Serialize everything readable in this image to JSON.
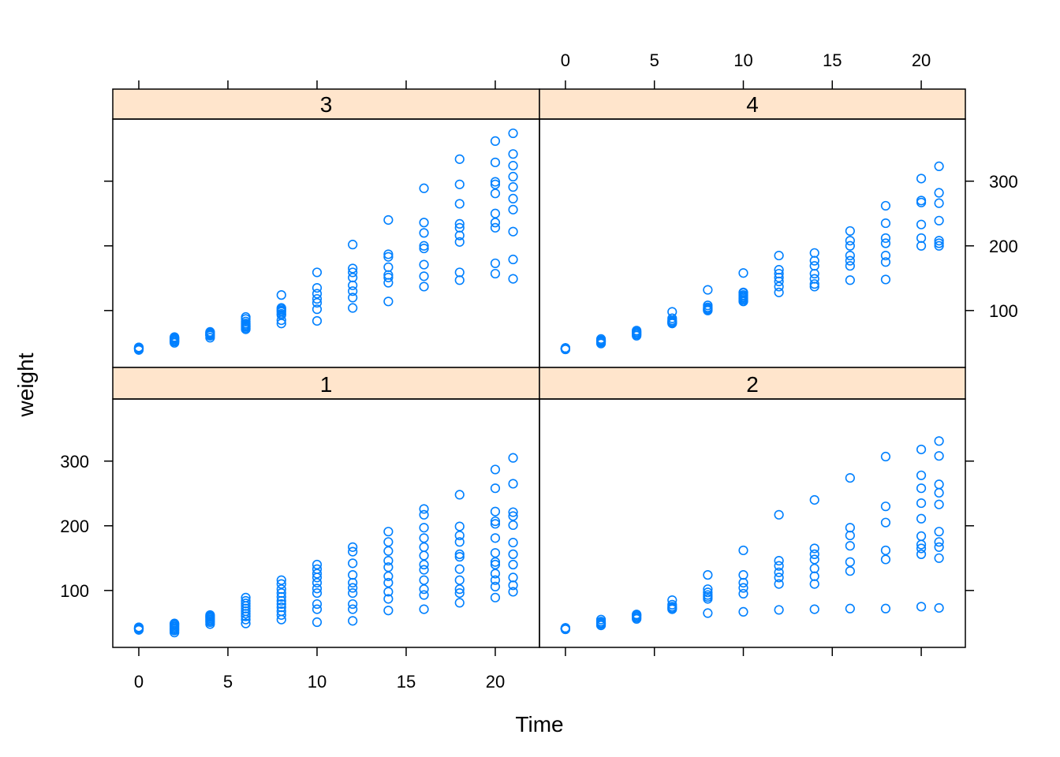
{
  "chart_data": {
    "type": "scatter",
    "layout": "2x2 trellis (xyplot weight ~ Time | Diet)",
    "xlabel": "Time",
    "ylabel": "weight",
    "xlim": [
      -1.46,
      22.48
    ],
    "ylim": [
      12,
      396
    ],
    "x_ticks": [
      0,
      5,
      10,
      15,
      20
    ],
    "y_ticks": [
      100,
      200,
      300
    ],
    "colors": {
      "point": "#0080FF",
      "strip": "#FFE5CC",
      "axis": "#000000"
    },
    "panels": [
      {
        "label": "3",
        "row": "top",
        "col": "left",
        "points": {
          "0": [
            39,
            40,
            41,
            41,
            42,
            42,
            43,
            43,
            42,
            41
          ],
          "2": [
            50,
            52,
            53,
            53,
            55,
            56,
            57,
            58,
            59
          ],
          "4": [
            58,
            61,
            62,
            62,
            63,
            64,
            65,
            66,
            67
          ],
          "6": [
            71,
            73,
            75,
            76,
            78,
            80,
            83,
            87,
            90
          ],
          "8": [
            80,
            85,
            93,
            95,
            98,
            100,
            102,
            104,
            124
          ],
          "10": [
            84,
            102,
            112,
            118,
            126,
            135,
            159
          ],
          "12": [
            104,
            120,
            130,
            139,
            151,
            159,
            165,
            202
          ],
          "14": [
            114,
            143,
            151,
            155,
            167,
            183,
            187,
            240
          ],
          "16": [
            137,
            153,
            171,
            196,
            200,
            220,
            236,
            289
          ],
          "18": [
            147,
            159,
            206,
            216,
            228,
            234,
            265,
            295,
            334
          ],
          "20": [
            157,
            173,
            228,
            236,
            250,
            281,
            295,
            299,
            329,
            362
          ],
          "21": [
            149,
            179,
            222,
            256,
            273,
            291,
            307,
            324,
            342,
            374
          ]
        }
      },
      {
        "label": "4",
        "row": "top",
        "col": "right",
        "points": {
          "0": [
            40,
            41,
            41,
            42,
            42,
            42,
            41,
            40,
            42,
            41
          ],
          "2": [
            49,
            51,
            52,
            53,
            54,
            56
          ],
          "4": [
            61,
            63,
            64,
            66,
            67,
            69
          ],
          "6": [
            80,
            81,
            82,
            83,
            85,
            88,
            98
          ],
          "8": [
            100,
            101,
            102,
            103,
            105,
            108,
            132
          ],
          "10": [
            114,
            116,
            118,
            120,
            122,
            124,
            127,
            128,
            158
          ],
          "12": [
            128,
            137,
            145,
            151,
            157,
            163,
            185
          ],
          "14": [
            137,
            141,
            149,
            157,
            169,
            177,
            189
          ],
          "16": [
            147,
            169,
            177,
            185,
            200,
            208,
            223
          ],
          "18": [
            148,
            175,
            185,
            204,
            212,
            235,
            262
          ],
          "20": [
            200,
            212,
            233,
            267,
            270,
            304
          ],
          "21": [
            200,
            204,
            208,
            239,
            266,
            282,
            323
          ]
        }
      },
      {
        "label": "1",
        "row": "bottom",
        "col": "left",
        "points": {
          "0": [
            39,
            40,
            41,
            41,
            42,
            43,
            43,
            41,
            42,
            41
          ],
          "2": [
            35,
            38,
            40,
            42,
            44,
            46,
            48,
            49
          ],
          "4": [
            48,
            51,
            53,
            55,
            57,
            59,
            60,
            62
          ],
          "6": [
            49,
            55,
            60,
            64,
            68,
            72,
            76,
            80,
            84,
            89
          ],
          "8": [
            55,
            62,
            68,
            74,
            79,
            84,
            90,
            96,
            102,
            110,
            116
          ],
          "10": [
            51,
            71,
            79,
            96,
            103,
            112,
            120,
            126,
            133,
            140
          ],
          "12": [
            53,
            71,
            79,
            96,
            104,
            112,
            124,
            142,
            160,
            167
          ],
          "14": [
            69,
            87,
            98,
            112,
            122,
            136,
            146,
            161,
            175,
            191
          ],
          "16": [
            71,
            93,
            102,
            116,
            132,
            140,
            154,
            167,
            181,
            197,
            217,
            226
          ],
          "18": [
            81,
            96,
            102,
            116,
            133,
            152,
            156,
            175,
            185,
            199,
            248
          ],
          "20": [
            89,
            106,
            116,
            126,
            140,
            144,
            158,
            181,
            203,
            207,
            222,
            258,
            287
          ],
          "21": [
            98,
            108,
            120,
            140,
            156,
            174,
            201,
            215,
            221,
            265,
            305
          ]
        }
      },
      {
        "label": "2",
        "row": "bottom",
        "col": "right",
        "points": {
          "0": [
            40,
            41,
            41,
            42,
            42,
            41,
            40,
            41,
            42,
            41
          ],
          "2": [
            46,
            48,
            49,
            50,
            52,
            55
          ],
          "4": [
            56,
            58,
            60,
            62,
            63
          ],
          "6": [
            71,
            73,
            75,
            78,
            85
          ],
          "8": [
            65,
            87,
            90,
            93,
            97,
            102,
            124
          ],
          "10": [
            67,
            95,
            104,
            112,
            124,
            162
          ],
          "12": [
            70,
            110,
            120,
            128,
            138,
            146,
            217
          ],
          "14": [
            71,
            110,
            122,
            134,
            148,
            156,
            165,
            240
          ],
          "16": [
            72,
            130,
            144,
            169,
            185,
            197,
            274
          ],
          "18": [
            72,
            148,
            162,
            205,
            230,
            307
          ],
          "20": [
            75,
            156,
            165,
            171,
            184,
            211,
            235,
            258,
            278,
            318
          ],
          "21": [
            73,
            150,
            167,
            175,
            191,
            233,
            251,
            264,
            308,
            331
          ]
        }
      }
    ]
  }
}
